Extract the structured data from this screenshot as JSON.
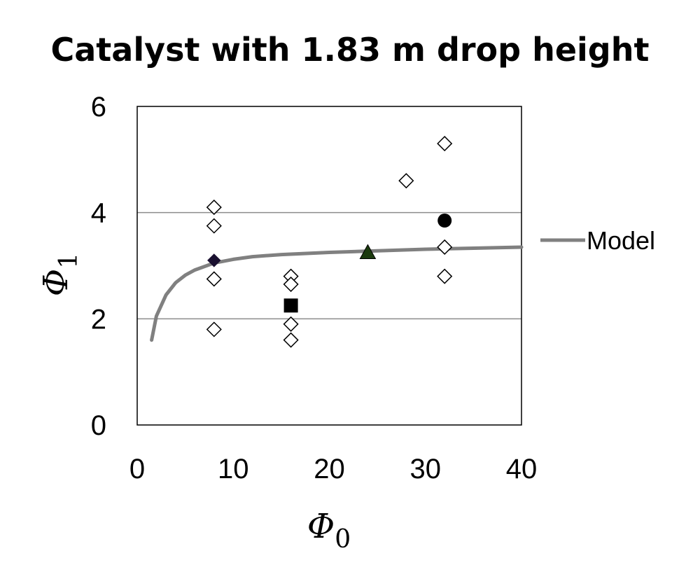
{
  "chart_data": {
    "type": "scatter",
    "title": "Catalyst with 1.83 m drop height",
    "xlabel": "Φ",
    "xlabel_sub": "0",
    "ylabel": "Φ",
    "ylabel_sub": "1",
    "xlim": [
      0,
      40
    ],
    "ylim": [
      0,
      6
    ],
    "x_ticks": [
      0,
      10,
      20,
      30,
      40
    ],
    "y_ticks": [
      0,
      2,
      4,
      6
    ],
    "gridlines_y": [
      2,
      4
    ],
    "legend": {
      "position": "right",
      "entries": [
        "Model"
      ]
    },
    "series": [
      {
        "marker": "open-diamond",
        "color": "#000000",
        "points": [
          [
            8,
            4.1
          ],
          [
            8,
            3.75
          ],
          [
            8,
            2.75
          ],
          [
            8,
            1.8
          ],
          [
            16,
            2.8
          ],
          [
            16,
            2.65
          ],
          [
            16,
            1.9
          ],
          [
            16,
            1.6
          ],
          [
            28,
            4.6
          ],
          [
            32,
            5.3
          ],
          [
            32,
            3.35
          ],
          [
            32,
            2.8
          ]
        ]
      },
      {
        "marker": "filled-diamond",
        "color": "#1a1030",
        "points": [
          [
            8,
            3.1
          ]
        ]
      },
      {
        "marker": "filled-square",
        "color": "#000000",
        "points": [
          [
            16,
            2.25
          ]
        ]
      },
      {
        "marker": "filled-triangle",
        "color": "#1b3a0e",
        "points": [
          [
            24,
            3.25
          ]
        ]
      },
      {
        "marker": "filled-circle",
        "color": "#000000",
        "points": [
          [
            32,
            3.85
          ]
        ]
      },
      {
        "name": "Model",
        "marker": "line",
        "color": "#808080",
        "points": [
          [
            1.5,
            1.6
          ],
          [
            2,
            2.05
          ],
          [
            3,
            2.45
          ],
          [
            4,
            2.68
          ],
          [
            5,
            2.82
          ],
          [
            6,
            2.92
          ],
          [
            8,
            3.05
          ],
          [
            10,
            3.12
          ],
          [
            12,
            3.17
          ],
          [
            15,
            3.21
          ],
          [
            20,
            3.25
          ],
          [
            25,
            3.28
          ],
          [
            30,
            3.31
          ],
          [
            35,
            3.33
          ],
          [
            40,
            3.35
          ]
        ]
      }
    ]
  }
}
